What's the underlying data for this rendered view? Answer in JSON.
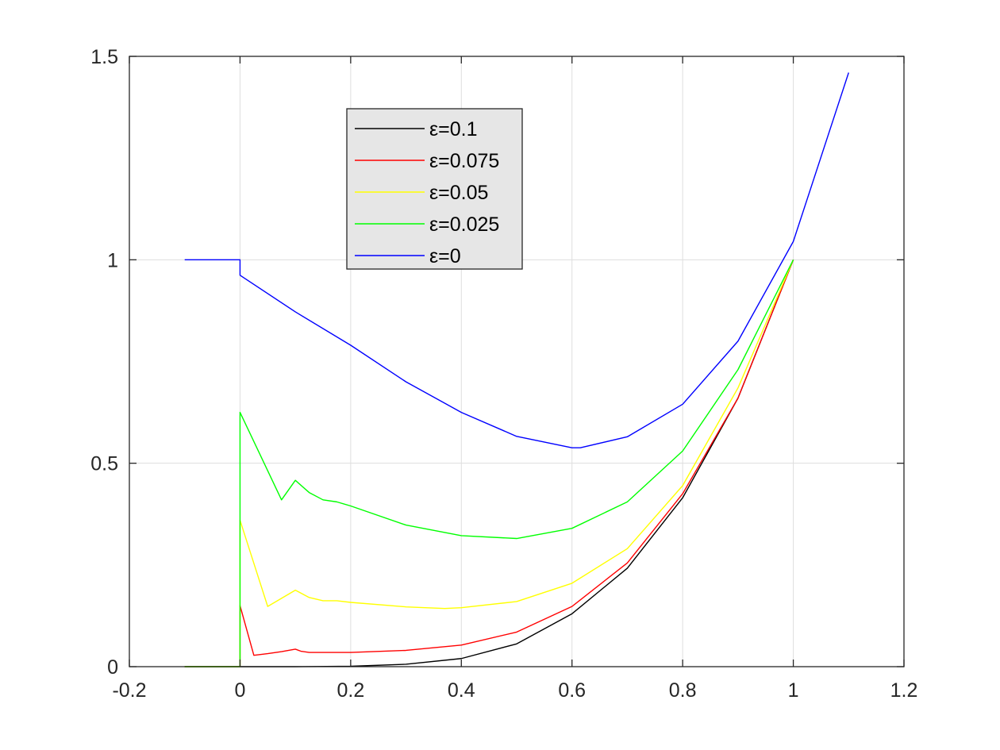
{
  "chart_data": {
    "type": "line",
    "title": "",
    "xlabel": "",
    "ylabel": "",
    "xlim": [
      -0.2,
      1.2
    ],
    "ylim": [
      0,
      1.5
    ],
    "grid": true,
    "legend_position": "top-center",
    "x_ticks": [
      -0.2,
      0,
      0.2,
      0.4,
      0.6,
      0.8,
      1,
      1.2
    ],
    "x_tick_labels": [
      "-0.2",
      "0",
      "0.2",
      "0.4",
      "0.6",
      "0.8",
      "1",
      "1.2"
    ],
    "y_ticks": [
      0,
      0.5,
      1,
      1.5
    ],
    "y_tick_labels": [
      "0",
      "0.5",
      "1",
      "1.5"
    ],
    "series": [
      {
        "name": "ε=0.1",
        "color": "#000000",
        "x": [
          -0.1,
          0,
          0.1,
          0.2,
          0.3,
          0.4,
          0.5,
          0.6,
          0.7,
          0.8,
          0.9,
          1
        ],
        "y": [
          0,
          0,
          0,
          0.001,
          0.006,
          0.02,
          0.056,
          0.13,
          0.242,
          0.415,
          0.66,
          1
        ]
      },
      {
        "name": "ε=0.075",
        "color": "#ff0000",
        "x": [
          -0.1,
          0,
          0,
          0.025,
          0.05,
          0.075,
          0.1,
          0.11,
          0.125,
          0.15,
          0.2,
          0.3,
          0.4,
          0.5,
          0.6,
          0.7,
          0.8,
          0.9,
          1
        ],
        "y": [
          0,
          0,
          0.15,
          0.028,
          0.032,
          0.037,
          0.043,
          0.038,
          0.035,
          0.035,
          0.035,
          0.04,
          0.053,
          0.085,
          0.148,
          0.255,
          0.425,
          0.66,
          1
        ]
      },
      {
        "name": "ε=0.05",
        "color": "#ffff00",
        "x": [
          -0.1,
          0,
          0,
          0.05,
          0.075,
          0.1,
          0.125,
          0.15,
          0.175,
          0.2,
          0.3,
          0.37,
          0.4,
          0.5,
          0.6,
          0.7,
          0.8,
          0.9,
          1
        ],
        "y": [
          0,
          0,
          0.36,
          0.148,
          0.168,
          0.188,
          0.17,
          0.162,
          0.162,
          0.158,
          0.147,
          0.143,
          0.145,
          0.16,
          0.205,
          0.29,
          0.445,
          0.685,
          1
        ]
      },
      {
        "name": "ε=0.025",
        "color": "#00ff00",
        "x": [
          -0.1,
          0,
          0,
          0.075,
          0.1,
          0.125,
          0.15,
          0.175,
          0.2,
          0.3,
          0.4,
          0.5,
          0.6,
          0.7,
          0.8,
          0.9,
          1
        ],
        "y": [
          0,
          0,
          0.625,
          0.41,
          0.458,
          0.428,
          0.41,
          0.405,
          0.395,
          0.348,
          0.322,
          0.315,
          0.34,
          0.405,
          0.53,
          0.73,
          1
        ]
      },
      {
        "name": "ε=0",
        "color": "#0000ff",
        "x": [
          -0.1,
          0,
          0,
          0.1,
          0.2,
          0.3,
          0.4,
          0.5,
          0.6,
          0.615,
          0.7,
          0.8,
          0.9,
          1,
          1.1
        ],
        "y": [
          1,
          1,
          0.962,
          0.872,
          0.79,
          0.7,
          0.625,
          0.566,
          0.538,
          0.538,
          0.565,
          0.645,
          0.8,
          1.045,
          1.46
        ]
      }
    ]
  }
}
